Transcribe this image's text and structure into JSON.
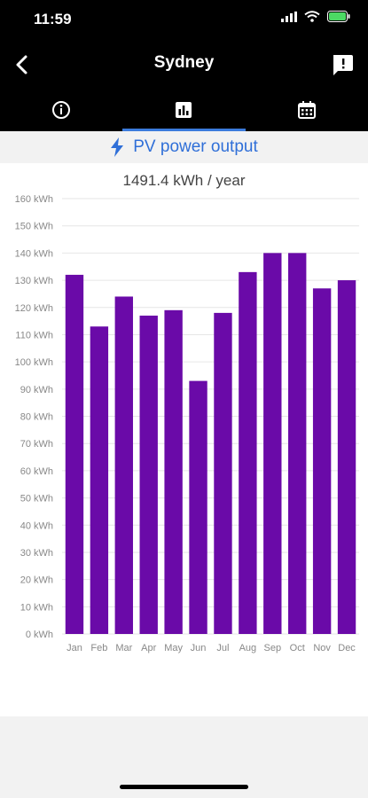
{
  "status": {
    "time": "11:59"
  },
  "nav": {
    "title": "Sydney"
  },
  "tabs": [
    {
      "icon": "info-icon"
    },
    {
      "icon": "bar-chart-icon"
    },
    {
      "icon": "calendar-icon"
    }
  ],
  "section": {
    "title": "PV power output",
    "icon": "lightning-icon"
  },
  "colors": {
    "bar": "#6a0aa8",
    "accent": "#2f6fd8",
    "header": "#000000"
  },
  "chart_data": {
    "type": "bar",
    "title": "1491.4 kWh / year",
    "categories": [
      "Jan",
      "Feb",
      "Mar",
      "Apr",
      "May",
      "Jun",
      "Jul",
      "Aug",
      "Sep",
      "Oct",
      "Nov",
      "Dec"
    ],
    "values": [
      132,
      113,
      124,
      117,
      119,
      93,
      118,
      133,
      140,
      140,
      127,
      130
    ],
    "ylim": [
      0,
      160
    ],
    "yticks": [
      "0 kWh",
      "10 kWh",
      "20 kWh",
      "30 kWh",
      "40 kWh",
      "50 kWh",
      "60 kWh",
      "70 kWh",
      "80 kWh",
      "90 kWh",
      "100 kWh",
      "110 kWh",
      "120 kWh",
      "130 kWh",
      "140 kWh",
      "150 kWh",
      "160 kWh"
    ],
    "grid": true
  }
}
